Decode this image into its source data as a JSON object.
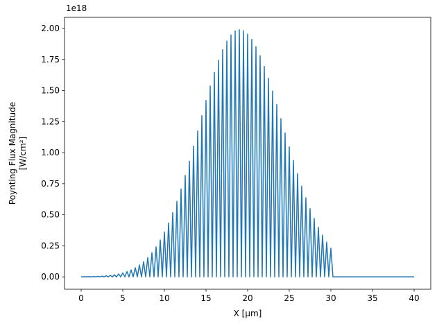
{
  "chart_data": {
    "type": "line",
    "xlabel": "X [µm]",
    "ylabel": [
      "Poynting Flux Magnitude",
      "[W/cm²]"
    ],
    "y_offset_label": "1e18",
    "x": [
      0,
      0.25,
      0.5,
      0.75,
      1,
      1.25,
      1.5,
      1.75,
      2,
      2.25,
      2.5,
      2.75,
      3,
      3.25,
      3.5,
      3.75,
      4,
      4.25,
      4.5,
      4.75,
      5,
      5.25,
      5.5,
      5.75,
      6,
      6.25,
      6.5,
      6.75,
      7,
      7.25,
      7.5,
      7.75,
      8,
      8.25,
      8.5,
      8.75,
      9,
      9.25,
      9.5,
      9.75,
      10,
      10.25,
      10.5,
      10.75,
      11,
      11.25,
      11.5,
      11.75,
      12,
      12.25,
      12.5,
      12.75,
      13,
      13.25,
      13.5,
      13.75,
      14,
      14.25,
      14.5,
      14.75,
      15,
      15.25,
      15.5,
      15.75,
      16,
      16.25,
      16.5,
      16.75,
      17,
      17.25,
      17.5,
      17.75,
      18,
      18.25,
      18.5,
      18.75,
      19,
      19.25,
      19.5,
      19.75,
      20,
      20.25,
      20.5,
      20.75,
      21,
      21.25,
      21.5,
      21.75,
      22,
      22.25,
      22.5,
      22.75,
      23,
      23.25,
      23.5,
      23.75,
      24,
      24.25,
      24.5,
      24.75,
      25,
      25.25,
      25.5,
      25.75,
      26,
      26.25,
      26.5,
      26.75,
      27,
      27.25,
      27.5,
      27.75,
      28,
      28.25,
      28.5,
      28.75,
      29,
      29.25,
      29.5,
      29.75,
      30,
      30.25,
      40
    ],
    "series": [
      {
        "color": "#1f77b4",
        "values": [
          0.001,
          0,
          0.0015,
          0,
          0.002,
          0,
          0.003,
          0,
          0.0045,
          0,
          0.0064,
          0,
          0.009,
          0,
          0.0126,
          0,
          0.017,
          0,
          0.024,
          0,
          0.032,
          0,
          0.043,
          0,
          0.056,
          0,
          0.074,
          0,
          0.096,
          0,
          0.122,
          0,
          0.155,
          0,
          0.195,
          0,
          0.242,
          0,
          0.297,
          0,
          0.361,
          0,
          0.434,
          0,
          0.516,
          0,
          0.608,
          0,
          0.708,
          0,
          0.817,
          0,
          0.932,
          0,
          1.052,
          0,
          1.175,
          0,
          1.298,
          0,
          1.42,
          0,
          1.537,
          0,
          1.646,
          0,
          1.744,
          0,
          1.829,
          0,
          1.898,
          0,
          1.948,
          0,
          1.979,
          0,
          1.99,
          0,
          1.981,
          0,
          1.955,
          0,
          1.912,
          0,
          1.853,
          0,
          1.78,
          0,
          1.695,
          0,
          1.6,
          0,
          1.496,
          0,
          1.387,
          0,
          1.274,
          0,
          1.159,
          0,
          1.047,
          0,
          0.937,
          0,
          0.832,
          0,
          0.731,
          0,
          0.637,
          0,
          0.55,
          0,
          0.471,
          0,
          0.399,
          0,
          0.336,
          0,
          0.28,
          0,
          0.231,
          0,
          0
        ]
      }
    ],
    "xlim": [
      -2,
      42
    ],
    "xticks": [
      0,
      5,
      10,
      15,
      20,
      25,
      30,
      35,
      40
    ],
    "ylim": [
      -0.0995,
      2.0895
    ],
    "yticks": [
      {
        "value": 0,
        "label": "0.00"
      },
      {
        "value": 0.25,
        "label": "0.25"
      },
      {
        "value": 0.5,
        "label": "0.50"
      },
      {
        "value": 0.75,
        "label": "0.75"
      },
      {
        "value": 1,
        "label": "1.00"
      },
      {
        "value": 1.25,
        "label": "1.25"
      },
      {
        "value": 1.5,
        "label": "1.50"
      },
      {
        "value": 1.75,
        "label": "1.75"
      },
      {
        "value": 2,
        "label": "2.00"
      }
    ]
  }
}
